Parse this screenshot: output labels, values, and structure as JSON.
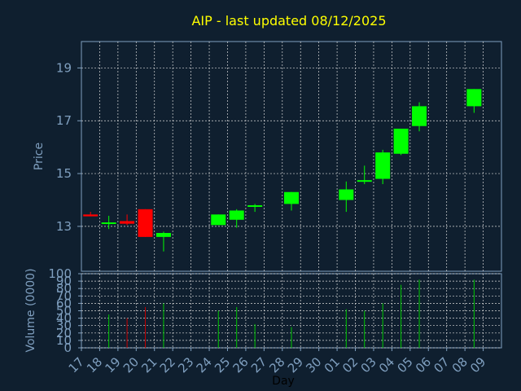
{
  "chart_data": [
    {
      "type": "candlestick",
      "title": "AIP - last updated 08/12/2025",
      "ylabel": "Price",
      "ylim": [
        11.3,
        20.0
      ],
      "yticks": [
        13,
        15,
        17,
        19
      ],
      "grid": true,
      "categories": [
        "17",
        "18",
        "19",
        "20",
        "21",
        "22",
        "23",
        "24",
        "25",
        "26",
        "27",
        "28",
        "29",
        "30",
        "01",
        "02",
        "03",
        "04",
        "05",
        "06",
        "07",
        "08",
        "09"
      ],
      "candles": [
        {
          "x": "17",
          "open": 13.45,
          "high": 13.55,
          "low": 13.38,
          "close": 13.38
        },
        {
          "x": "18",
          "open": 13.15,
          "high": 13.4,
          "low": 12.9,
          "close": 13.15
        },
        {
          "x": "19",
          "open": 13.2,
          "high": 13.45,
          "low": 13.05,
          "close": 13.1
        },
        {
          "x": "20",
          "open": 13.65,
          "high": 13.65,
          "low": 12.6,
          "close": 12.6
        },
        {
          "x": "21",
          "open": 12.6,
          "high": 12.8,
          "low": 12.05,
          "close": 12.75
        },
        {
          "x": "24",
          "open": 13.05,
          "high": 13.45,
          "low": 13.05,
          "close": 13.45
        },
        {
          "x": "25",
          "open": 13.25,
          "high": 13.65,
          "low": 12.95,
          "close": 13.6
        },
        {
          "x": "26",
          "open": 13.8,
          "high": 13.85,
          "low": 13.55,
          "close": 13.8
        },
        {
          "x": "28",
          "open": 13.85,
          "high": 14.3,
          "low": 13.6,
          "close": 14.3
        },
        {
          "x": "01",
          "open": 14.0,
          "high": 14.7,
          "low": 13.55,
          "close": 14.4
        },
        {
          "x": "02",
          "open": 14.75,
          "high": 15.3,
          "low": 14.6,
          "close": 14.75
        },
        {
          "x": "03",
          "open": 14.8,
          "high": 15.9,
          "low": 14.6,
          "close": 15.8
        },
        {
          "x": "04",
          "open": 15.75,
          "high": 16.7,
          "low": 15.7,
          "close": 16.7
        },
        {
          "x": "05",
          "open": 16.8,
          "high": 17.7,
          "low": 16.6,
          "close": 17.55
        },
        {
          "x": "08",
          "open": 17.55,
          "high": 18.2,
          "low": 17.3,
          "close": 18.2
        }
      ]
    },
    {
      "type": "bar",
      "ylabel": "Volume (0000)",
      "xlabel": "Day",
      "ylim": [
        0,
        100
      ],
      "yticks": [
        0,
        10,
        20,
        30,
        40,
        50,
        60,
        70,
        80,
        90,
        100
      ],
      "grid": true,
      "categories": [
        "17",
        "18",
        "19",
        "20",
        "21",
        "22",
        "23",
        "24",
        "25",
        "26",
        "27",
        "28",
        "29",
        "30",
        "01",
        "02",
        "03",
        "04",
        "05",
        "06",
        "07",
        "08",
        "09"
      ],
      "bars": [
        {
          "x": "18",
          "value": 45,
          "direction": "up"
        },
        {
          "x": "19",
          "value": 40,
          "direction": "down"
        },
        {
          "x": "20",
          "value": 55,
          "direction": "down"
        },
        {
          "x": "21",
          "value": 60,
          "direction": "up"
        },
        {
          "x": "24",
          "value": 50,
          "direction": "up"
        },
        {
          "x": "25",
          "value": 55,
          "direction": "up"
        },
        {
          "x": "26",
          "value": 32,
          "direction": "up"
        },
        {
          "x": "28",
          "value": 28,
          "direction": "up"
        },
        {
          "x": "01",
          "value": 52,
          "direction": "up"
        },
        {
          "x": "02",
          "value": 50,
          "direction": "up"
        },
        {
          "x": "03",
          "value": 60,
          "direction": "up"
        },
        {
          "x": "04",
          "value": 85,
          "direction": "up"
        },
        {
          "x": "05",
          "value": 92,
          "direction": "up"
        },
        {
          "x": "08",
          "value": 92,
          "direction": "up"
        }
      ]
    }
  ],
  "colors": {
    "background": "#0f1f2f",
    "axis": "#7f9fbf",
    "grid": "#d8d8d8",
    "title": "#ffff00",
    "up": "#00ff00",
    "down": "#ff0000",
    "up_volume": "#00c800",
    "down_volume": "#c80000",
    "xlabel": "#000000"
  }
}
